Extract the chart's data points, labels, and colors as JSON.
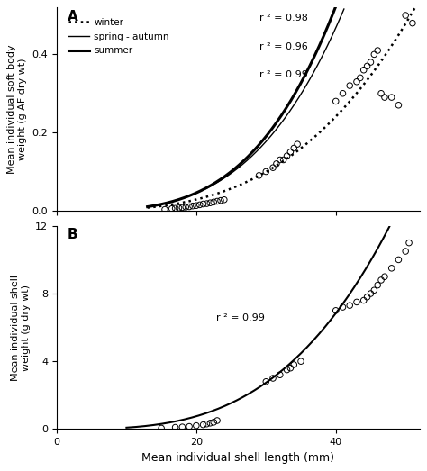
{
  "panel_A_title": "A",
  "panel_B_title": "B",
  "xlabel": "Mean individual shell length (mm)",
  "ylabel_A": "Mean individual soft body\nweight (g AF dry wt)",
  "ylabel_B": "Mean individual shell\nweight (g dry wt)",
  "xlim": [
    0,
    52
  ],
  "ylim_A": [
    0,
    0.52
  ],
  "ylim_B": [
    0,
    12
  ],
  "yticks_A": [
    0.0,
    0.2,
    0.4
  ],
  "yticks_B": [
    0,
    4,
    8,
    12
  ],
  "xticks": [
    0,
    20,
    40
  ],
  "legend_labels": [
    "winter",
    "spring - autumn",
    "summer"
  ],
  "legend_r2": [
    "r ² = 0.98",
    "r ² = 0.96",
    "r ² = 0.99"
  ],
  "panel_B_r2": "r ² = 0.99",
  "winter_a": 2.8e-06,
  "winter_b": 3.08,
  "spring_autumn_a": 1.8e-06,
  "spring_autumn_b": 3.38,
  "summer_a": 1.2e-06,
  "summer_b": 3.52,
  "shell_a": 5.5e-05,
  "shell_b": 3.18,
  "scatter_A_x": [
    15.5,
    16.5,
    17,
    17.5,
    18,
    18.5,
    19,
    19.5,
    20,
    20.5,
    21,
    21.5,
    22,
    22.5,
    23,
    23.5,
    24,
    29,
    30,
    31,
    31.5,
    32,
    32.5,
    33,
    33.5,
    34,
    34.5,
    40,
    41,
    42,
    43,
    43.5,
    44,
    44.5,
    45,
    45.5,
    46,
    46.5,
    47,
    48,
    49,
    50,
    51
  ],
  "scatter_A_y": [
    0.003,
    0.005,
    0.006,
    0.007,
    0.008,
    0.009,
    0.01,
    0.012,
    0.013,
    0.015,
    0.017,
    0.018,
    0.02,
    0.022,
    0.024,
    0.026,
    0.028,
    0.09,
    0.1,
    0.11,
    0.12,
    0.13,
    0.13,
    0.14,
    0.15,
    0.16,
    0.17,
    0.28,
    0.3,
    0.32,
    0.33,
    0.34,
    0.36,
    0.37,
    0.38,
    0.4,
    0.41,
    0.3,
    0.29,
    0.29,
    0.27,
    0.5,
    0.48
  ],
  "scatter_B_x": [
    15,
    17,
    18,
    19,
    20,
    21,
    21.5,
    22,
    22.5,
    23,
    30,
    31,
    32,
    33,
    33.5,
    34,
    35,
    40,
    41,
    42,
    43,
    44,
    44.5,
    45,
    45.5,
    46,
    46.5,
    47,
    48,
    49,
    50,
    50.5
  ],
  "scatter_B_y": [
    0.05,
    0.1,
    0.12,
    0.15,
    0.2,
    0.25,
    0.3,
    0.35,
    0.4,
    0.5,
    2.8,
    3.0,
    3.2,
    3.5,
    3.6,
    3.8,
    4.0,
    7.0,
    7.2,
    7.3,
    7.5,
    7.6,
    7.8,
    8.0,
    8.2,
    8.5,
    8.8,
    9.0,
    9.5,
    10.0,
    10.5,
    11.0
  ]
}
